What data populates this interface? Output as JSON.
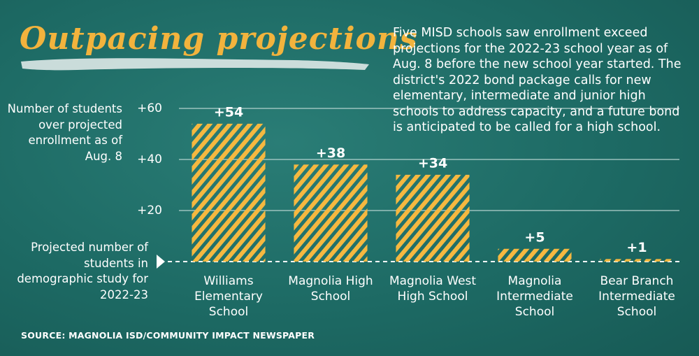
{
  "title": "Outpacing projections",
  "description": "Five MISD schools saw enrollment exceed projections for the 2022-23 school year as of Aug. 8 before the new school year started. The district's 2022 bond package calls for new elementary, intermediate and junior high schools to address capacity, and a future bond is anticipated to be called for a high school.",
  "source": "SOURCE: MAGNOLIA ISD/COMMUNITY IMPACT NEWSPAPER",
  "chart_data": {
    "type": "bar",
    "y_label": "Number of students over projected enrollment as of Aug. 8",
    "baseline_annotation": "Projected number of students in demographic study for 2022-23",
    "categories": [
      "Williams Elementary School",
      "Magnolia High School",
      "Magnolia West High School",
      "Magnolia Intermediate School",
      "Bear Branch Intermediate School"
    ],
    "values": [
      54,
      38,
      34,
      5,
      1
    ],
    "value_labels": [
      "+54",
      "+38",
      "+34",
      "+5",
      "+1"
    ],
    "color": "#f5b840",
    "ylim": [
      0,
      60
    ],
    "yticks": [
      {
        "value": 20,
        "label": "+20"
      },
      {
        "value": 40,
        "label": "+40"
      },
      {
        "value": 60,
        "label": "+60"
      }
    ],
    "grid": true
  }
}
